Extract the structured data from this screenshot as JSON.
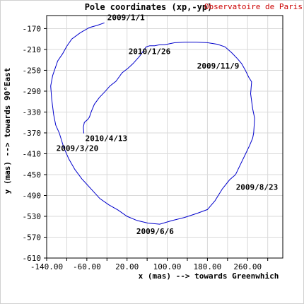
{
  "title": "Pole coordinates (xp,-yp)",
  "credit": "Observatoire de Paris",
  "colors": {
    "curve": "#0000cc",
    "credit": "#cc0000",
    "grid": "#d9d9d9",
    "axis": "#000000",
    "text": "#000000"
  },
  "chart_data": {
    "type": "line",
    "title": "Pole coordinates (xp,-yp)",
    "xlabel": "x (mas) --> towards Greenwhich",
    "ylabel": "y (mas) --> towards 90°East",
    "xlim": [
      -140,
      330
    ],
    "ylim": [
      -610,
      -145
    ],
    "x_ticks": [
      -140,
      -60,
      20,
      100,
      180,
      260
    ],
    "x_tick_labels": [
      "-140.00",
      "-60.00",
      "20.00",
      "100.00",
      "180.00",
      "260.00"
    ],
    "x_grid": [
      -140,
      -100,
      -60,
      -20,
      20,
      60,
      100,
      140,
      180,
      220,
      260,
      300
    ],
    "y_ticks": [
      -170,
      -210,
      -250,
      -290,
      -330,
      -370,
      -410,
      -450,
      -490,
      -530,
      -570,
      -610
    ],
    "y_tick_labels": [
      "-170",
      "-210",
      "-250",
      "-290",
      "-330",
      "-370",
      "-410",
      "-450",
      "-490",
      "-530",
      "-570",
      "-610"
    ],
    "grid": true,
    "series": [
      {
        "x": [
          -25,
          -40,
          -55,
          -73,
          -90,
          -100,
          -108,
          -118,
          -128,
          -132,
          -130,
          -126,
          -122,
          -115,
          -106,
          -96,
          -84,
          -70,
          -52,
          -34,
          -16,
          2,
          20,
          40,
          62,
          85,
          110,
          135,
          160,
          180,
          195,
          210,
          224,
          236,
          246,
          256,
          264,
          270,
          272,
          274,
          270,
          266,
          268,
          262,
          255,
          248,
          240,
          228,
          215,
          200,
          180,
          158,
          135,
          115,
          95,
          85,
          75,
          65,
          58,
          45,
          32,
          22,
          10,
          -2,
          -14,
          -24,
          -35,
          -45,
          -51,
          -55,
          -58,
          -65,
          -67,
          -66
        ],
        "y": [
          -159,
          -164,
          -168,
          -178,
          -190,
          -204,
          -218,
          -232,
          -260,
          -280,
          -305,
          -335,
          -355,
          -370,
          -398,
          -420,
          -440,
          -458,
          -477,
          -496,
          -508,
          -518,
          -530,
          -538,
          -543,
          -545,
          -538,
          -532,
          -524,
          -517,
          -500,
          -477,
          -460,
          -450,
          -430,
          -410,
          -394,
          -380,
          -370,
          -342,
          -324,
          -295,
          -272,
          -263,
          -249,
          -237,
          -228,
          -216,
          -205,
          -200,
          -197,
          -196,
          -196,
          -197,
          -201,
          -201,
          -203,
          -203,
          -205,
          -223,
          -237,
          -246,
          -255,
          -271,
          -280,
          -291,
          -302,
          -315,
          -329,
          -340,
          -344,
          -350,
          -359,
          -371
        ]
      }
    ],
    "annotations": [
      {
        "text": "2009/1/1",
        "x": -25,
        "y": -159
      },
      {
        "text": "2009/3/20",
        "x": -132,
        "y": -380
      },
      {
        "text": "2009/6/6",
        "x": 85,
        "y": -545
      },
      {
        "text": "2009/8/23",
        "x": 255,
        "y": -455
      },
      {
        "text": "2009/11/9",
        "x": 210,
        "y": -240
      },
      {
        "text": "2010/1/26",
        "x": 20,
        "y": -205
      },
      {
        "text": "2010/4/13",
        "x": -66,
        "y": -371
      }
    ]
  }
}
